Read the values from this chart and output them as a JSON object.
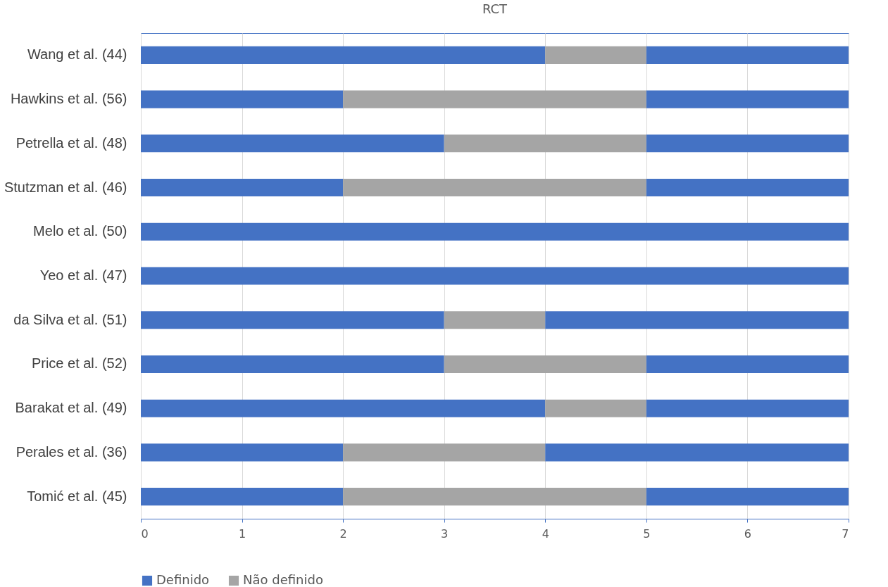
{
  "chart_data": {
    "type": "bar",
    "orientation": "horizontal",
    "stacked": true,
    "title": "RCT",
    "categories": [
      "Wang et al. (44)",
      "Hawkins et al. (56)",
      "Petrella et al. (48)",
      "Stutzman et al. (46)",
      "Melo et al. (50)",
      "Yeo et al. (47)",
      "da Silva et al. (51)",
      "Price et al. (52)",
      "Barakat et al. (49)",
      "Perales et al. (36)",
      "Tomić et al. (45)"
    ],
    "series": [
      {
        "name": "Definido",
        "color": "#4472c4",
        "values": [
          4,
          2,
          3,
          2,
          7,
          7,
          3,
          3,
          4,
          2,
          2
        ]
      },
      {
        "name": "Não definido",
        "color": "#a5a5a5",
        "values": [
          1,
          3,
          2,
          3,
          0,
          0,
          1,
          2,
          1,
          2,
          3
        ]
      },
      {
        "color": "#4472c4",
        "values": [
          2,
          2,
          2,
          2,
          0,
          0,
          3,
          2,
          2,
          3,
          2
        ]
      }
    ],
    "xlim": [
      0,
      7
    ],
    "xticks": [
      0,
      1,
      2,
      3,
      4,
      5,
      6,
      7
    ],
    "grid": "x",
    "legend": "bottom"
  }
}
